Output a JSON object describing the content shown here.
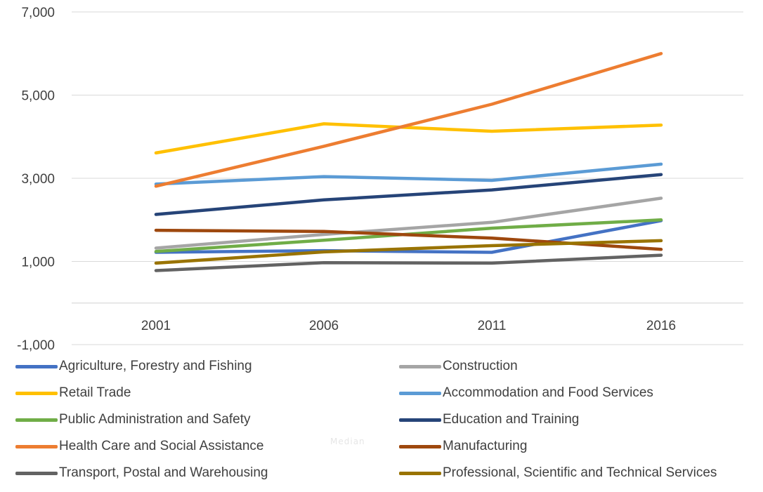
{
  "chart_data": {
    "type": "line",
    "title": "",
    "xlabel": "",
    "ylabel": "",
    "x": [
      "2001",
      "2006",
      "2011",
      "2016"
    ],
    "ylim": [
      -1000,
      7000
    ],
    "y_ticks": [
      "7,000",
      "5,000",
      "3,000",
      "1,000",
      "-1,000"
    ],
    "y_tick_values": [
      7000,
      5000,
      3000,
      1000,
      -1000
    ],
    "grid": true,
    "legend_position": "bottom",
    "series": [
      {
        "name": "Agriculture, Forestry and Fishing",
        "color": "#4472C4",
        "values": [
          1220,
          1260,
          1220,
          1980
        ]
      },
      {
        "name": "Construction",
        "color": "#A5A5A5",
        "values": [
          1320,
          1650,
          1940,
          2520
        ]
      },
      {
        "name": "Retail Trade",
        "color": "#FFC000",
        "values": [
          3610,
          4310,
          4130,
          4280
        ]
      },
      {
        "name": "Accommodation and Food Services",
        "color": "#5B9BD5",
        "values": [
          2860,
          3040,
          2950,
          3340
        ]
      },
      {
        "name": "Public Administration and Safety",
        "color": "#70AD47",
        "values": [
          1240,
          1510,
          1800,
          2000
        ]
      },
      {
        "name": "Education and Training",
        "color": "#264478",
        "values": [
          2130,
          2480,
          2720,
          3090
        ]
      },
      {
        "name": "Health Care and Social Assistance",
        "color": "#ED7D31",
        "values": [
          2810,
          3770,
          4780,
          6000
        ]
      },
      {
        "name": "Manufacturing",
        "color": "#9E480E",
        "values": [
          1750,
          1720,
          1560,
          1290
        ]
      },
      {
        "name": "Transport, Postal and Warehousing",
        "color": "#636363",
        "values": [
          780,
          970,
          960,
          1150
        ]
      },
      {
        "name": "Professional, Scientific and Technical Services",
        "color": "#997300",
        "values": [
          960,
          1230,
          1380,
          1500
        ]
      }
    ]
  },
  "watermark_text": "Median"
}
